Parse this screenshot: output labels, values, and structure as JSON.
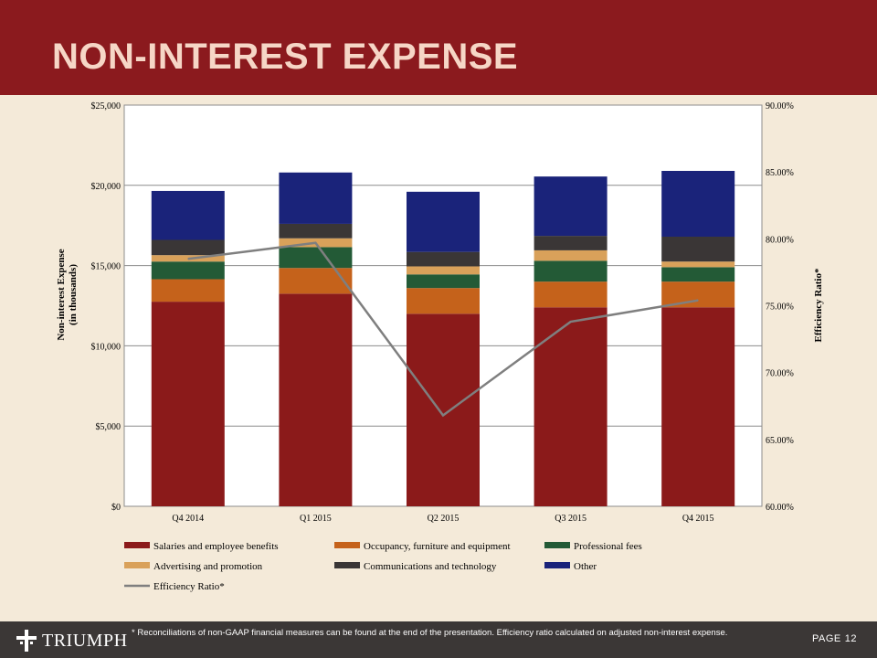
{
  "header": {
    "title": "NON-INTEREST EXPENSE"
  },
  "chart_data": {
    "type": "bar",
    "stacked": true,
    "categories": [
      "Q4 2014",
      "Q1 2015",
      "Q2 2015",
      "Q3 2015",
      "Q4 2015"
    ],
    "series": [
      {
        "name": "Salaries and employee benefits",
        "color": "#8b1a1a",
        "values": [
          12750,
          13250,
          12000,
          12400,
          12400
        ]
      },
      {
        "name": "Occupancy, furniture and equipment",
        "color": "#c5621b",
        "values": [
          1400,
          1600,
          1600,
          1600,
          1600
        ]
      },
      {
        "name": "Professional fees",
        "color": "#235a36",
        "values": [
          1100,
          1300,
          850,
          1300,
          900
        ]
      },
      {
        "name": "Advertising and promotion",
        "color": "#d9a15a",
        "values": [
          400,
          550,
          500,
          650,
          350
        ]
      },
      {
        "name": "Communications and technology",
        "color": "#3a3636",
        "values": [
          950,
          900,
          900,
          900,
          1550
        ]
      },
      {
        "name": "Other",
        "color": "#1a237a",
        "values": [
          3050,
          3200,
          3750,
          3700,
          4100
        ]
      }
    ],
    "line_series": {
      "name": "Efficiency Ratio*",
      "color": "#7f7f7f",
      "axis": "right",
      "values": [
        78.5,
        79.7,
        66.8,
        73.8,
        75.4
      ]
    },
    "ylabel": "Non-interest Expense (in thousands)",
    "ylabel_lines": [
      "Non-interest Expense",
      "(in thousands)"
    ],
    "ylim": [
      0,
      25000
    ],
    "yticks": [
      0,
      5000,
      10000,
      15000,
      20000,
      25000
    ],
    "ytick_labels": [
      "$0",
      "$5,000",
      "$10,000",
      "$15,000",
      "$20,000",
      "$25,000"
    ],
    "y2label": "Efficiency Ratio*",
    "y2lim": [
      60,
      90
    ],
    "y2ticks": [
      60,
      65,
      70,
      75,
      80,
      85,
      90
    ],
    "y2tick_labels": [
      "60.00%",
      "65.00%",
      "70.00%",
      "75.00%",
      "80.00%",
      "85.00%",
      "90.00%"
    ],
    "grid": true,
    "legend_position": "bottom"
  },
  "footer": {
    "logo_text": "TRIUMPH",
    "footnote": "* Reconciliations of non-GAAP financial measures can be found at the end of the presentation. Efficiency ratio calculated on adjusted non-interest expense.",
    "page_label": "PAGE",
    "page_number": "12"
  }
}
